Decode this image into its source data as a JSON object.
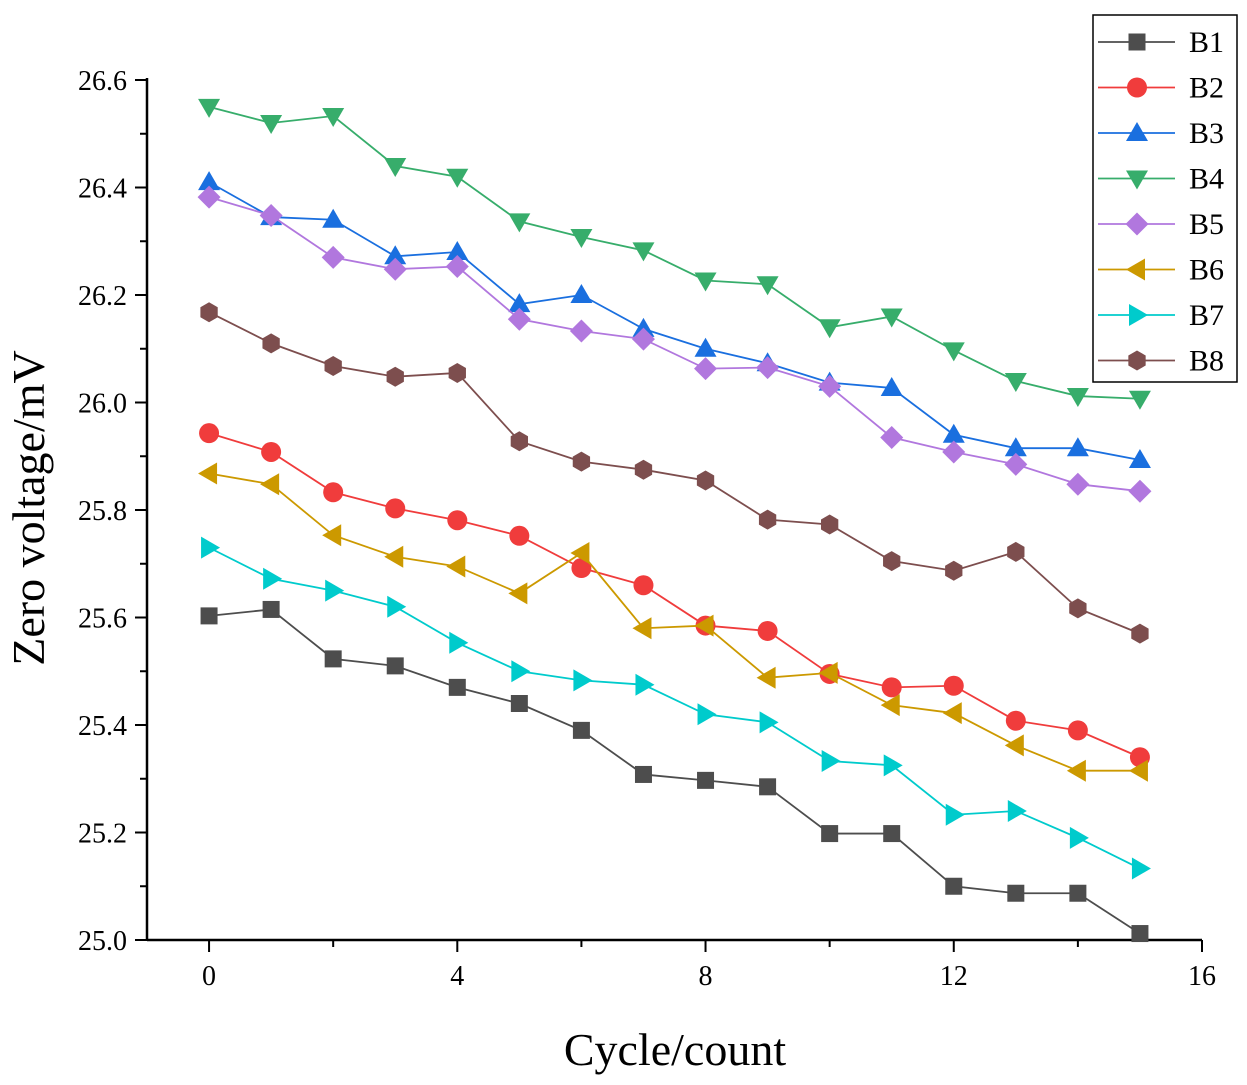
{
  "chart_data": {
    "type": "line",
    "xlabel": "Cycle/count",
    "ylabel": "Zero voltage/mV",
    "xlim": [
      -1,
      16
    ],
    "ylim": [
      25.0,
      26.6
    ],
    "xticks": [
      0,
      4,
      8,
      12,
      16
    ],
    "xtick_labels": [
      "0",
      "4",
      "8",
      "12",
      "16"
    ],
    "yticks": [
      25.0,
      25.2,
      25.4,
      25.6,
      25.8,
      26.0,
      26.2,
      26.4,
      26.6
    ],
    "ytick_labels": [
      "25.0",
      "25.2",
      "25.4",
      "25.6",
      "25.8",
      "26.0",
      "26.2",
      "26.4",
      "26.6"
    ],
    "legend_position": "top-right",
    "grid": false,
    "x": [
      0,
      1,
      2,
      3,
      4,
      5,
      6,
      7,
      8,
      9,
      10,
      11,
      12,
      13,
      14,
      15
    ],
    "series": [
      {
        "name": "B1",
        "color": "#4d4d4d",
        "marker": "square",
        "values": [
          25.603,
          25.615,
          25.523,
          25.51,
          25.47,
          25.44,
          25.39,
          25.308,
          25.297,
          25.285,
          25.198,
          25.198,
          25.1,
          25.087,
          25.087,
          25.012
        ]
      },
      {
        "name": "B2",
        "color": "#f03c3c",
        "marker": "circle",
        "values": [
          25.943,
          25.908,
          25.833,
          25.803,
          25.781,
          25.752,
          25.692,
          25.66,
          25.585,
          25.575,
          25.495,
          25.47,
          25.473,
          25.408,
          25.39,
          25.34
        ]
      },
      {
        "name": "B3",
        "color": "#1a6fdf",
        "marker": "triangle-up",
        "values": [
          26.41,
          26.345,
          26.34,
          26.272,
          26.28,
          26.183,
          26.2,
          26.137,
          26.1,
          26.073,
          26.037,
          26.027,
          25.94,
          25.915,
          25.915,
          25.893
        ]
      },
      {
        "name": "B4",
        "color": "#37ad6b",
        "marker": "triangle-down",
        "values": [
          26.55,
          26.52,
          26.533,
          26.44,
          26.42,
          26.337,
          26.308,
          26.283,
          26.227,
          26.22,
          26.14,
          26.16,
          26.097,
          26.04,
          26.012,
          26.007
        ]
      },
      {
        "name": "B5",
        "color": "#b177de",
        "marker": "diamond",
        "values": [
          26.382,
          26.348,
          26.27,
          26.248,
          26.253,
          26.155,
          26.133,
          26.118,
          26.063,
          26.065,
          26.03,
          25.935,
          25.908,
          25.885,
          25.848,
          25.835
        ]
      },
      {
        "name": "B6",
        "color": "#cc9900",
        "marker": "triangle-left",
        "values": [
          25.868,
          25.848,
          25.753,
          25.713,
          25.695,
          25.645,
          25.72,
          25.58,
          25.585,
          25.488,
          25.497,
          25.437,
          25.422,
          25.362,
          25.315,
          25.315
        ]
      },
      {
        "name": "B7",
        "color": "#00cbcc",
        "marker": "triangle-right",
        "values": [
          25.73,
          25.672,
          25.65,
          25.62,
          25.553,
          25.5,
          25.483,
          25.475,
          25.42,
          25.405,
          25.333,
          25.325,
          25.233,
          25.24,
          25.19,
          25.133
        ]
      },
      {
        "name": "B8",
        "color": "#7d4e4e",
        "marker": "hexagon",
        "values": [
          26.168,
          26.11,
          26.068,
          26.048,
          26.055,
          25.928,
          25.89,
          25.875,
          25.855,
          25.782,
          25.773,
          25.705,
          25.687,
          25.722,
          25.617,
          25.57
        ]
      }
    ]
  }
}
